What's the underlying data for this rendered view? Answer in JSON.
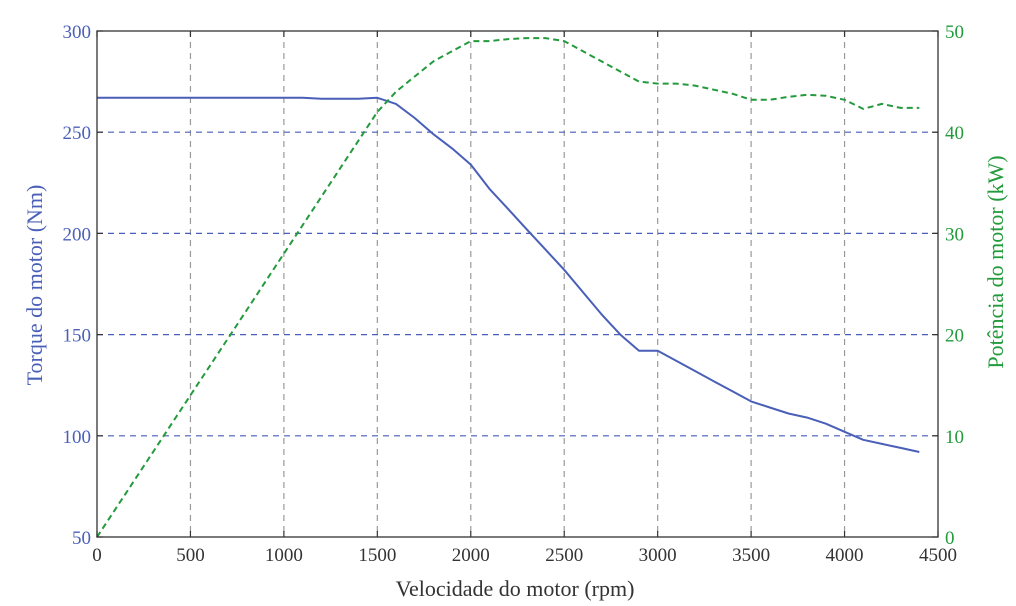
{
  "chart_data": {
    "type": "line",
    "xlabel": "Velocidade do motor (rpm)",
    "ylabel_left": "Torque do motor (Nm)",
    "ylabel_right": "Potência do motor (kW)",
    "xlim": [
      0,
      4500
    ],
    "ylim_left": [
      50,
      300
    ],
    "ylim_right": [
      0,
      50
    ],
    "x_ticks": [
      0,
      500,
      1000,
      1500,
      2000,
      2500,
      3000,
      3500,
      4000,
      4500
    ],
    "y_left_ticks": [
      50,
      100,
      150,
      200,
      250,
      300
    ],
    "y_right_ticks": [
      0,
      10,
      20,
      30,
      40,
      50
    ],
    "grid": {
      "vertical": true,
      "horizontal": true
    },
    "series": [
      {
        "axis": "left",
        "style": "solid",
        "color": "#4a5fb8",
        "x": [
          0,
          500,
          1000,
          1100,
          1200,
          1300,
          1400,
          1500,
          1600,
          1700,
          1800,
          1900,
          2000,
          2100,
          2200,
          2300,
          2400,
          2500,
          2600,
          2700,
          2800,
          2900,
          3000,
          3100,
          3200,
          3300,
          3400,
          3500,
          3600,
          3700,
          3800,
          3900,
          4000,
          4100,
          4200,
          4300,
          4400
        ],
        "y": [
          267,
          267,
          267,
          267,
          266.5,
          266.5,
          266.5,
          267,
          264,
          257,
          249,
          242,
          234,
          222,
          212,
          202,
          192,
          182,
          171,
          160,
          150,
          142,
          142,
          137,
          132,
          127,
          122,
          117,
          114,
          111,
          109,
          106,
          102,
          98,
          96,
          94,
          92
        ]
      },
      {
        "axis": "right",
        "style": "dashed",
        "color": "#239a3b",
        "x": [
          0,
          250,
          500,
          750,
          1000,
          1250,
          1500,
          1600,
          1700,
          1800,
          1900,
          2000,
          2100,
          2200,
          2300,
          2400,
          2500,
          2600,
          2700,
          2800,
          2900,
          3000,
          3100,
          3200,
          3300,
          3400,
          3500,
          3600,
          3700,
          3800,
          3900,
          4000,
          4100,
          4200,
          4300,
          4400
        ],
        "y": [
          0,
          7,
          14,
          21,
          28,
          35,
          42,
          44,
          45.5,
          47,
          48,
          49,
          49,
          49.2,
          49.3,
          49.3,
          49,
          48,
          47,
          46,
          45,
          44.8,
          44.8,
          44.6,
          44.2,
          43.8,
          43.2,
          43.2,
          43.5,
          43.7,
          43.6,
          43.2,
          42.3,
          42.8,
          42.4,
          42.4
        ]
      }
    ],
    "colors": {
      "left_axis": "#4a5fb8",
      "right_axis": "#239a3b",
      "frame": "#333333",
      "v_grid": "#9a9a9a",
      "h_grid": "#4a5fb8"
    }
  }
}
